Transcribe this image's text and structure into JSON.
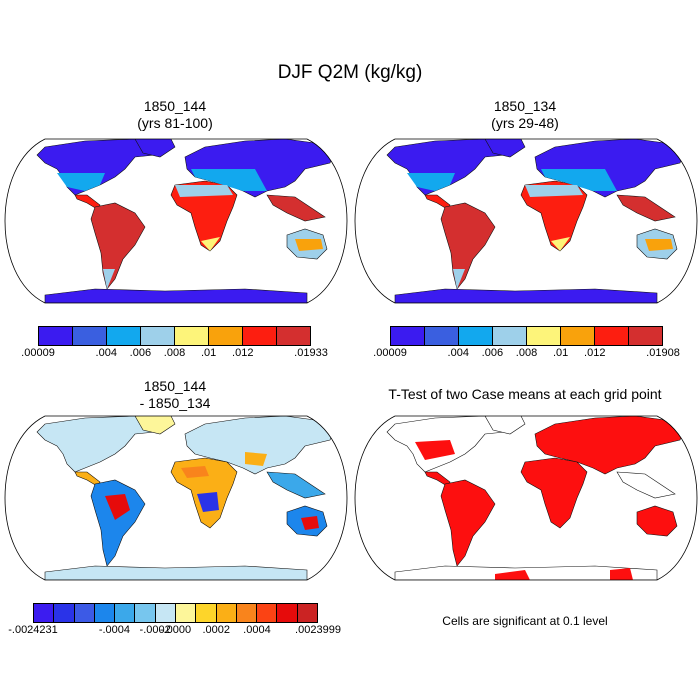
{
  "title": "DJF Q2M (kg/kg)",
  "panels": [
    {
      "id": "a",
      "title": "1850_144\n(yrs 81-100)",
      "colorbar": {
        "colors": [
          "#3b1bf0",
          "#3a5fe0",
          "#12a8ee",
          "#9ed0ea",
          "#fdf47a",
          "#f9a20c",
          "#fd1e10",
          "#d42f2f"
        ],
        "labels": [
          ".00009",
          ".004",
          ".006",
          ".008",
          ".01",
          ".012",
          ".01933"
        ]
      }
    },
    {
      "id": "b",
      "title": "1850_134\n(yrs 29-48)",
      "colorbar": {
        "colors": [
          "#3b1bf0",
          "#3a5fe0",
          "#12a8ee",
          "#9ed0ea",
          "#fdf47a",
          "#f9a20c",
          "#fd1e10",
          "#d42f2f"
        ],
        "labels": [
          ".00009",
          ".004",
          ".006",
          ".008",
          ".01",
          ".012",
          ".01908"
        ]
      }
    },
    {
      "id": "c",
      "title": "1850_144\n- 1850_134",
      "colorbar": {
        "colors": [
          "#3c1cf0",
          "#2a33e8",
          "#3c5ae6",
          "#1c86ec",
          "#3ba8ea",
          "#77c6ee",
          "#c6e6f4",
          "#fdf69a",
          "#fdd52a",
          "#fbaf16",
          "#f9841c",
          "#fb4314",
          "#e60b0b",
          "#cb2323"
        ],
        "labels": [
          "-.0024231",
          "-.0004",
          "-.0002",
          "-.0000",
          ".0002",
          ".0004",
          ".0023999"
        ]
      }
    },
    {
      "id": "d",
      "title": "T-Test of two Case means at each grid point",
      "note": "Cells are significant at 0.1 level"
    }
  ]
}
